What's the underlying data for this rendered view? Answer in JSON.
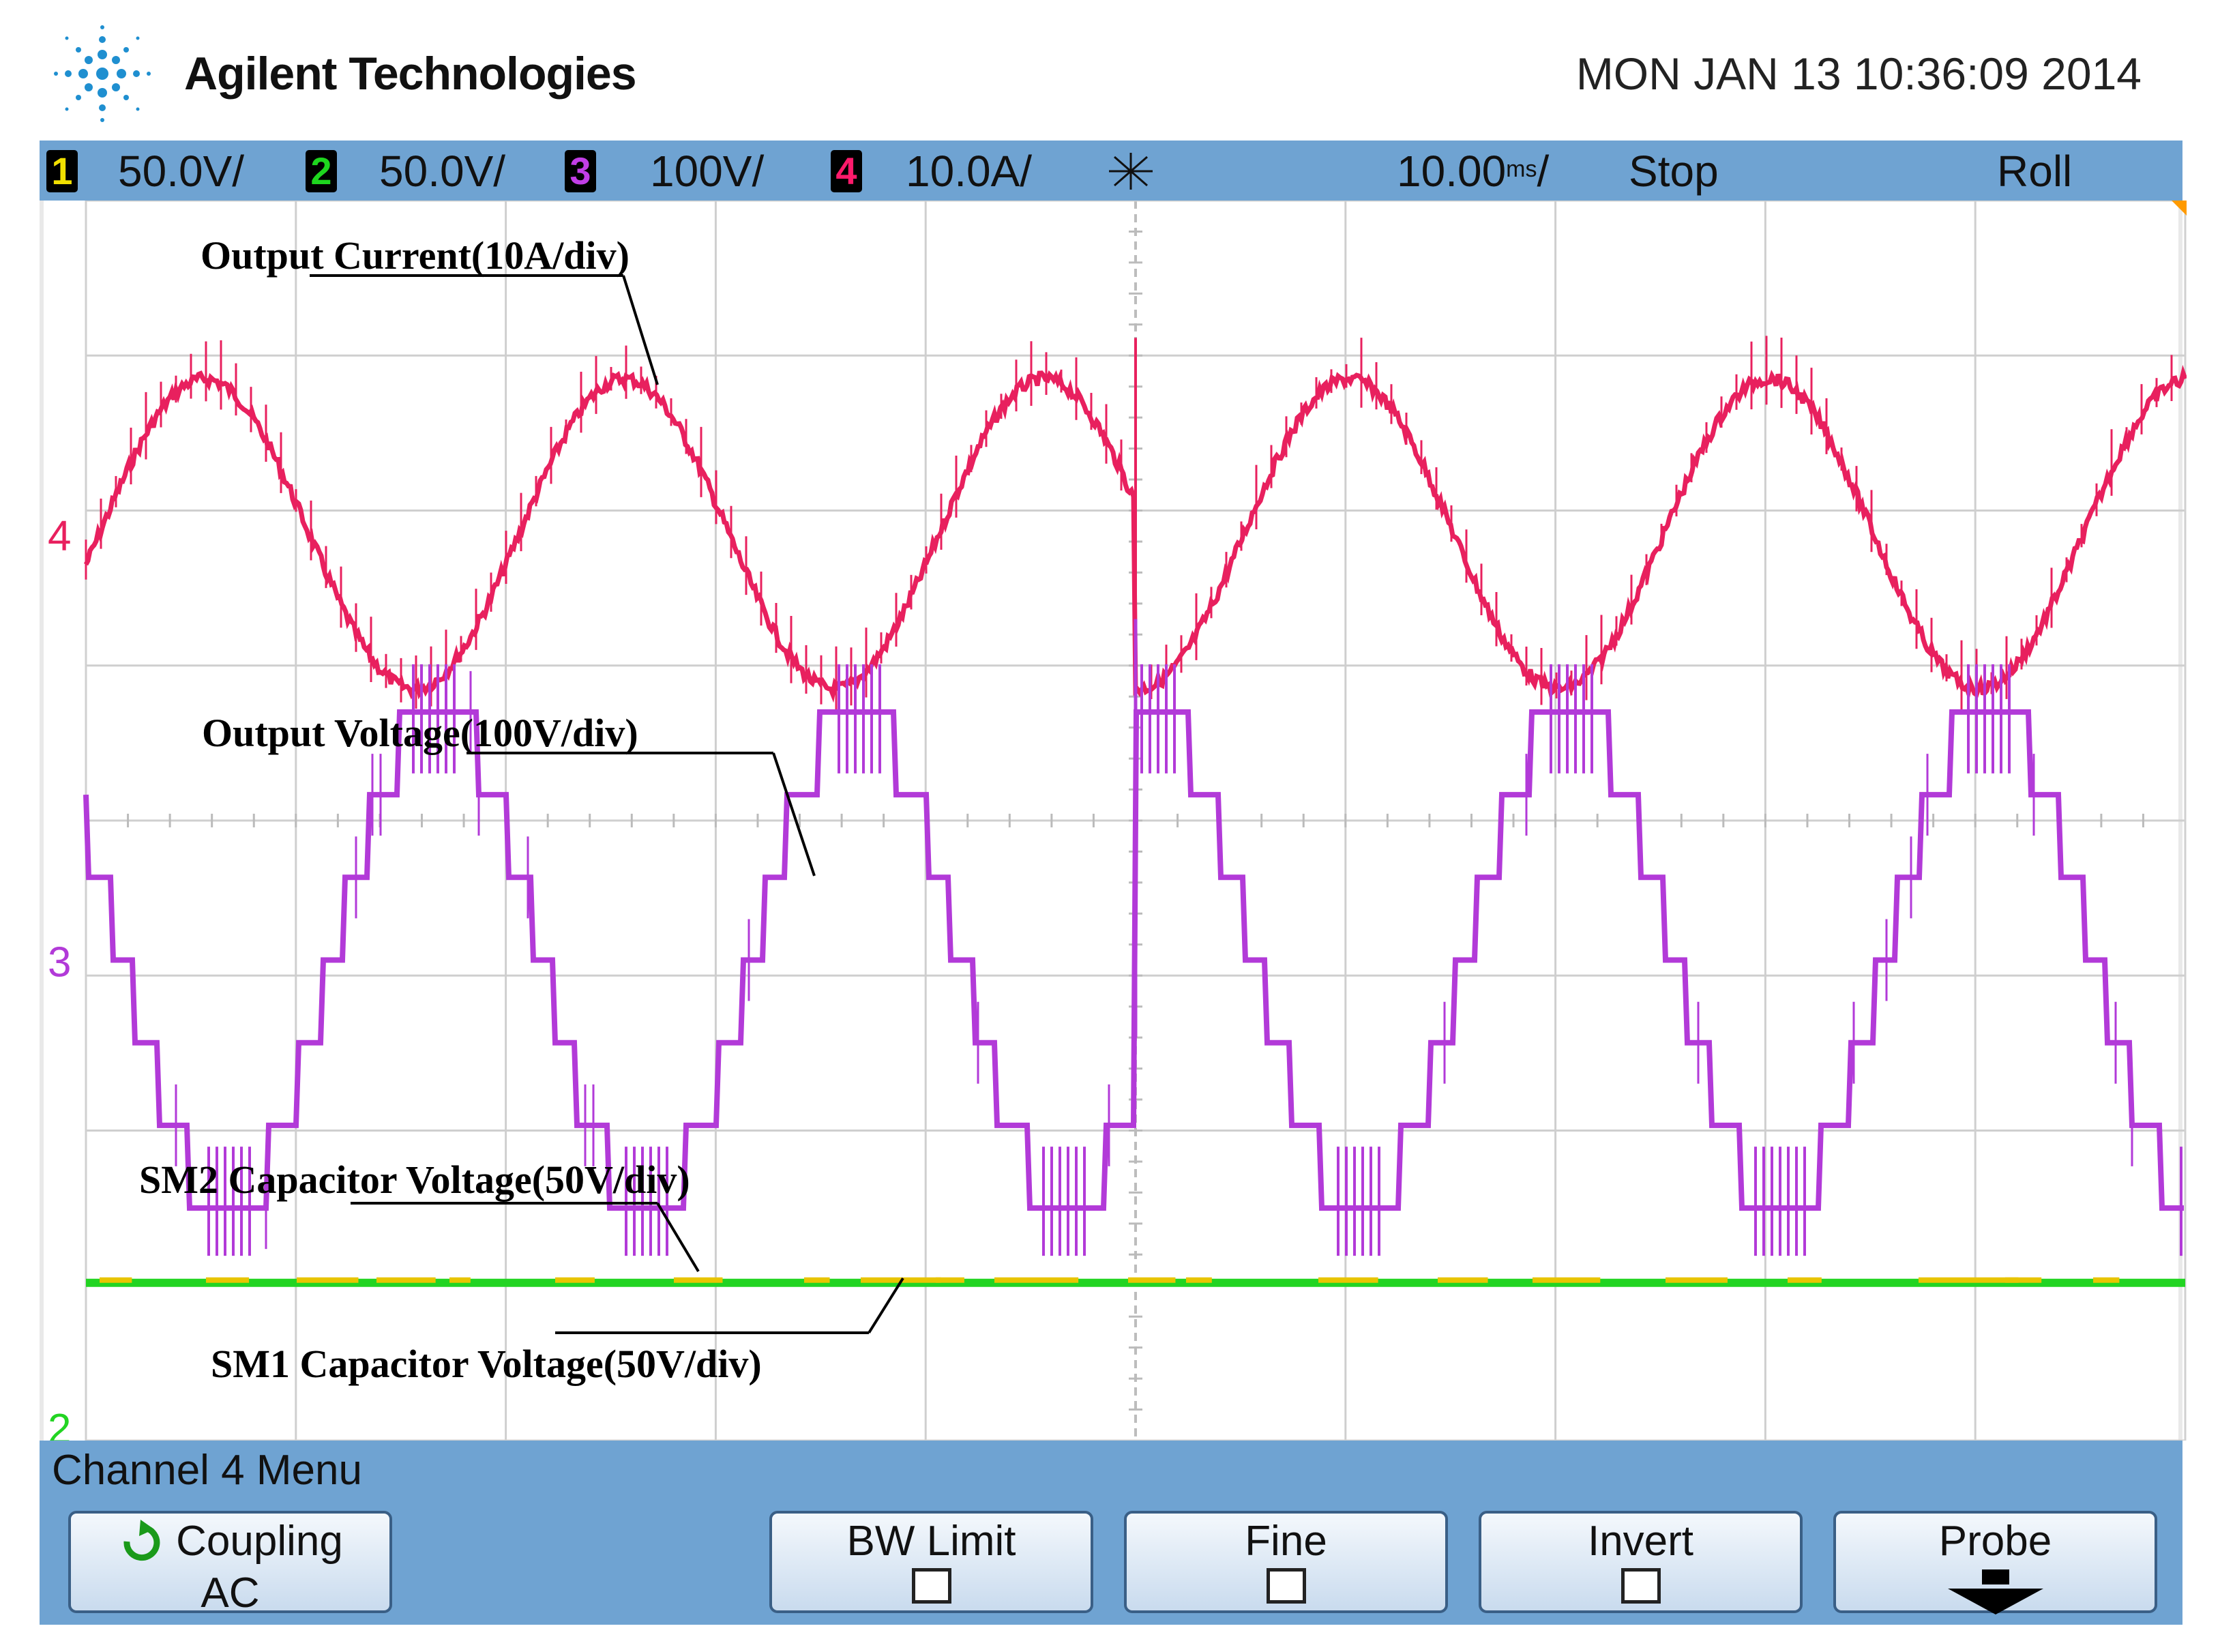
{
  "header": {
    "brand": "Agilent Technologies",
    "datetime": "MON JAN 13 10:36:09 2014"
  },
  "status_bar": {
    "ch1": {
      "number": "1",
      "scale": "50.0V/",
      "color": "#f2e000"
    },
    "ch2": {
      "number": "2",
      "scale": "50.0V/",
      "color": "#1ed61e"
    },
    "ch3": {
      "number": "3",
      "scale": "100V/",
      "color": "#c23ee6"
    },
    "ch4": {
      "number": "4",
      "scale": "10.0A/",
      "color": "#ff1a6b"
    },
    "timebase": "10.00",
    "timebase_unit": "ms",
    "state": "Stop",
    "mode": "Roll"
  },
  "menu": {
    "title": "Channel 4  Menu",
    "softkeys": {
      "coupling": {
        "label": "Coupling",
        "value": "AC"
      },
      "bw_limit": {
        "label": "BW Limit"
      },
      "fine": {
        "label": "Fine"
      },
      "invert": {
        "label": "Invert"
      },
      "probe": {
        "label": "Probe"
      }
    }
  },
  "chart_data": {
    "type": "line",
    "title": "",
    "x_unit": "ms",
    "grid": true,
    "divisions": {
      "horizontal": 10,
      "vertical": 8
    },
    "colors": {
      "current": "#e8205e",
      "voltage": "#b23ad8",
      "sm2": "#e8c400",
      "sm1": "#22d422",
      "grid": "#cfcfcf"
    },
    "annotations": [
      "Output Current(10A/div)",
      "Output Voltage(100V/div)",
      "SM2 Capacitor Voltage(50V/div)",
      "SM1 Capacitor Voltage(50V/div)"
    ],
    "channel_markers": [
      "4",
      "3",
      "2"
    ],
    "series": [
      {
        "name": "Output Current(10A/div)",
        "channel": "4",
        "unit": "A",
        "amplitude_div": 1.0,
        "cycles": 5,
        "transient_at_div": 5.0
      },
      {
        "name": "Output Voltage(100V/div)",
        "channel": "3",
        "unit": "V",
        "levels": 7,
        "amplitude_div": 1.6,
        "cycles": 5,
        "transient_at_div": 5.0
      },
      {
        "name": "SM2 Capacitor Voltage(50V/div)",
        "channel": "1",
        "unit": "V",
        "level_div": 1.0
      },
      {
        "name": "SM1 Capacitor Voltage(50V/div)",
        "channel": "2",
        "unit": "V",
        "level_div": 1.0
      }
    ]
  }
}
